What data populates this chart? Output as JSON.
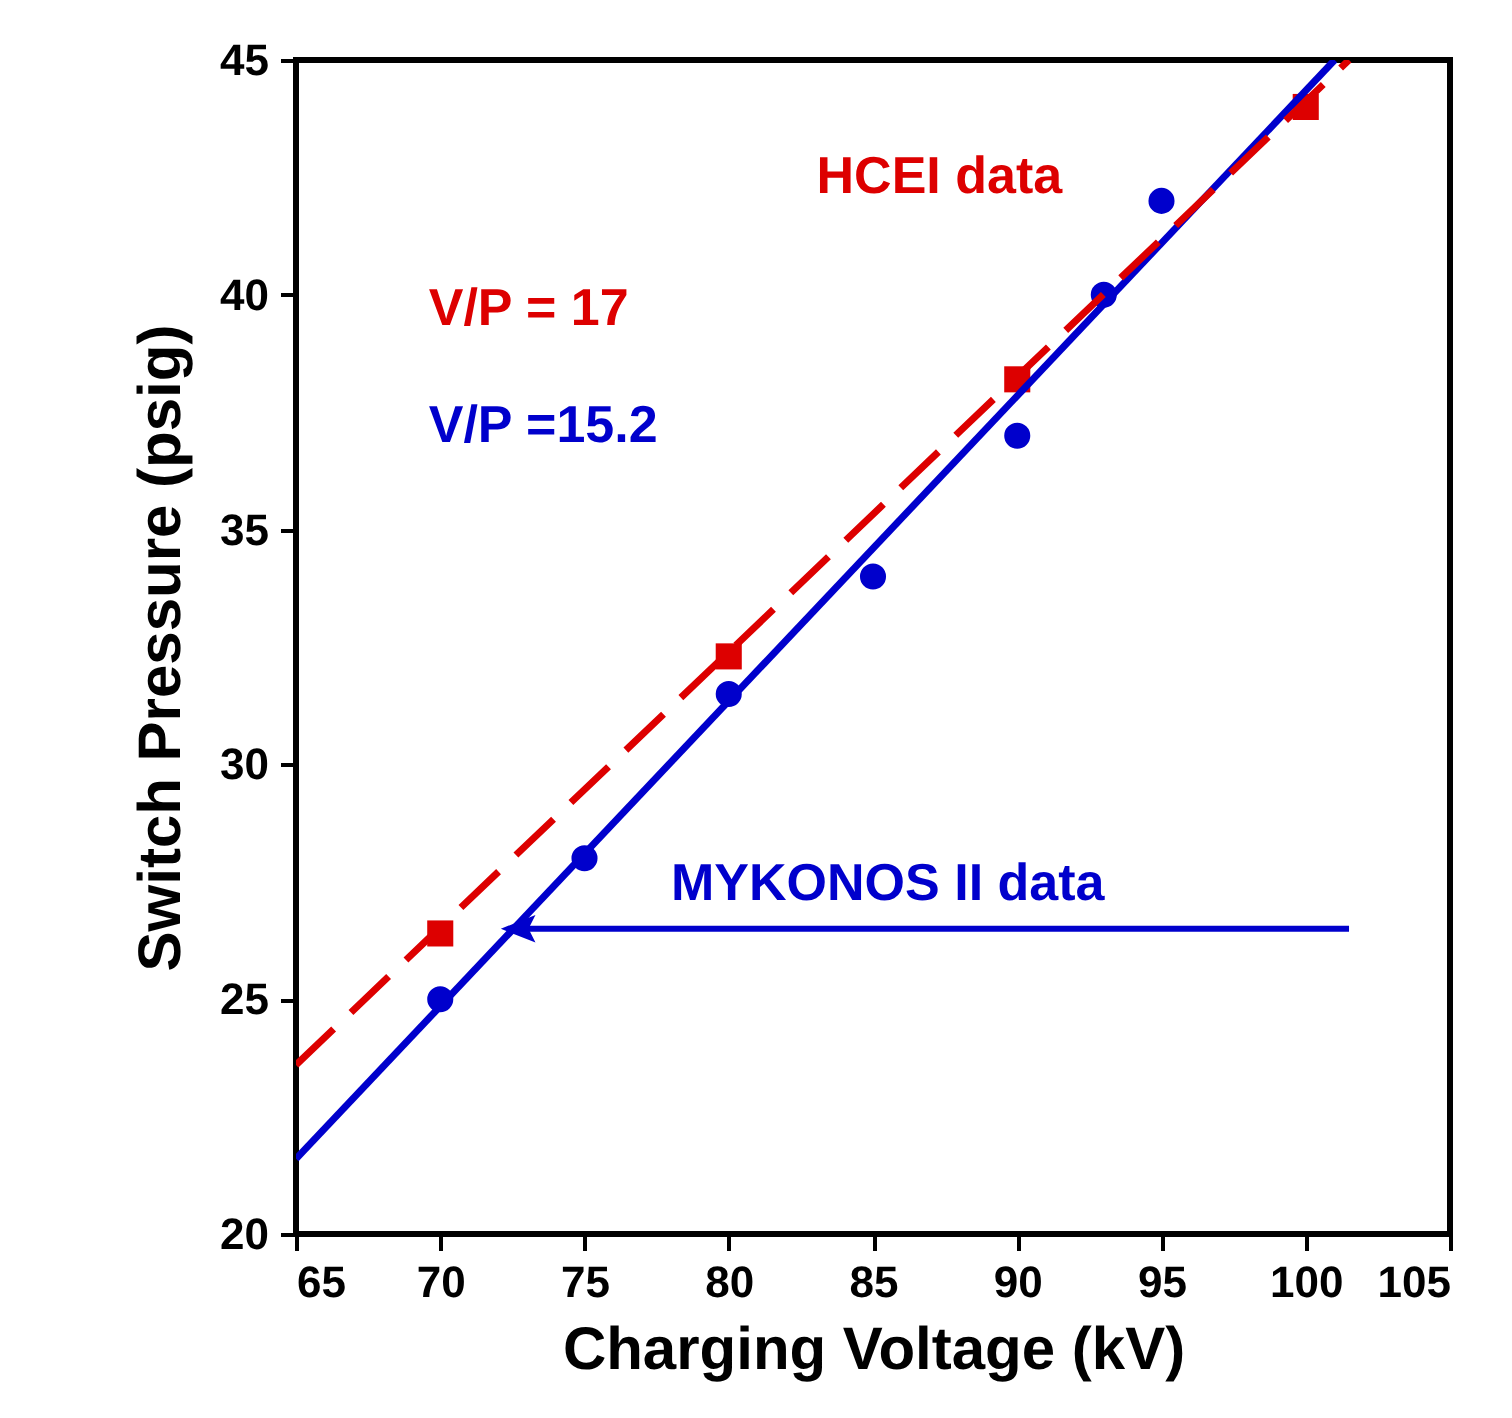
{
  "chart_data": {
    "type": "scatter",
    "xlabel": "Charging Voltage (kV)",
    "ylabel": "Switch Pressure (psig)",
    "xlim": [
      65,
      105
    ],
    "xticks": [
      65,
      70,
      75,
      80,
      85,
      90,
      95,
      100,
      105
    ],
    "ylim": [
      20,
      45
    ],
    "yticks": [
      20,
      25,
      30,
      35,
      40,
      45
    ],
    "grid": false,
    "series": [
      {
        "marker": "circle",
        "color": "#0000cc",
        "x": [
          70,
          75,
          80,
          85,
          90,
          93,
          95
        ],
        "values": [
          25.0,
          28.0,
          31.5,
          34.0,
          37.0,
          40.0,
          42.0
        ]
      },
      {
        "marker": "square",
        "color": "#dd0000",
        "x": [
          70,
          80,
          90,
          100
        ],
        "values": [
          26.4,
          32.3,
          38.2,
          44.0
        ]
      },
      {
        "type": "line",
        "line_style": "solid",
        "color": "#0000cc",
        "x": [
          65,
          101
        ],
        "values": [
          21.6,
          45
        ]
      },
      {
        "type": "line",
        "line_style": "dashed",
        "color": "#dd0000",
        "x": [
          65,
          101.5
        ],
        "values": [
          23.6,
          45
        ]
      }
    ],
    "annotations": [
      "HCEI data",
      "V/P = 17",
      "V/P =15.2",
      "MYKONOS II data"
    ]
  }
}
